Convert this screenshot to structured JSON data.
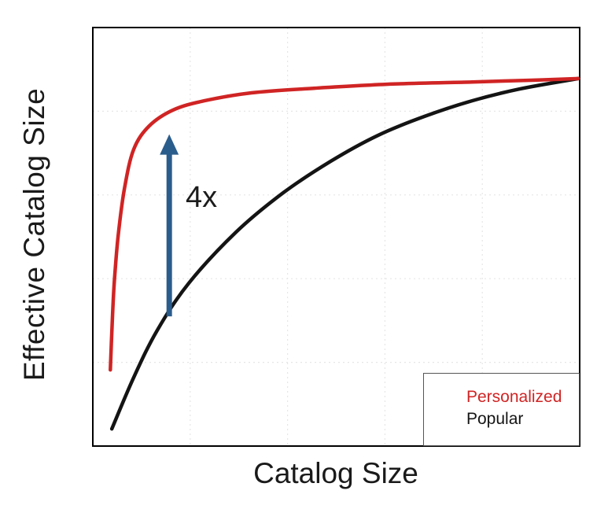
{
  "chart_data": {
    "type": "line",
    "title": "",
    "xlabel": "Catalog Size",
    "ylabel": "Effective Catalog Size",
    "xlim": [
      0,
      1
    ],
    "ylim": [
      0,
      1
    ],
    "grid": true,
    "grid_style": "faint-dotted",
    "tick_labels": "none (axes are unlabeled / normalized)",
    "legend_position": "bottom-right-inside",
    "series": [
      {
        "name": "Personalized",
        "color": "#d02424",
        "x": [
          0.036,
          0.04,
          0.044,
          0.052,
          0.065,
          0.084,
          0.116,
          0.165,
          0.229,
          0.326,
          0.456,
          0.617,
          0.779,
          0.9,
          0.997
        ],
        "y": [
          0.182,
          0.3,
          0.389,
          0.502,
          0.615,
          0.709,
          0.765,
          0.803,
          0.825,
          0.844,
          0.855,
          0.865,
          0.87,
          0.874,
          0.878
        ]
      },
      {
        "name": "Popular",
        "color": "#141414",
        "x": [
          0.039,
          0.084,
          0.132,
          0.197,
          0.294,
          0.391,
          0.488,
          0.585,
          0.682,
          0.779,
          0.876,
          0.997
        ],
        "y": [
          0.041,
          0.164,
          0.276,
          0.389,
          0.511,
          0.605,
          0.68,
          0.742,
          0.788,
          0.825,
          0.853,
          0.878
        ]
      }
    ],
    "annotation": {
      "label": "4x",
      "arrow_color": "#2b5d8c",
      "arrow_x": 0.157,
      "arrow_y_from": 0.31,
      "arrow_y_to": 0.745
    }
  }
}
